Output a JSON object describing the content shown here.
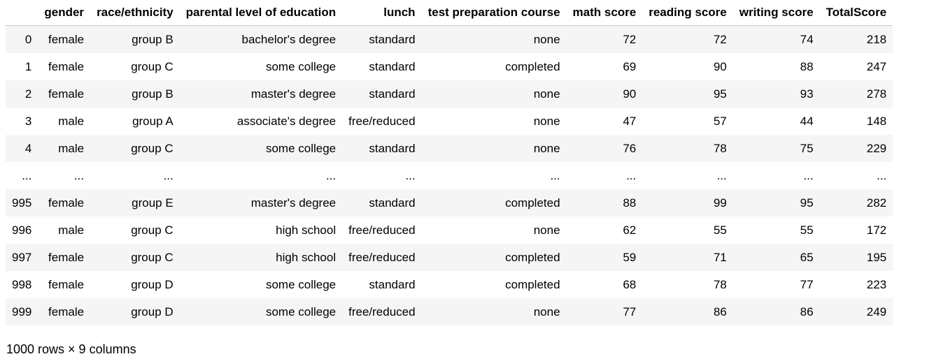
{
  "table": {
    "columns": [
      "",
      "gender",
      "race/ethnicity",
      "parental level of education",
      "lunch",
      "test preparation course",
      "math score",
      "reading score",
      "writing score",
      "TotalScore"
    ],
    "rows": [
      [
        "0",
        "female",
        "group B",
        "bachelor's degree",
        "standard",
        "none",
        "72",
        "72",
        "74",
        "218"
      ],
      [
        "1",
        "female",
        "group C",
        "some college",
        "standard",
        "completed",
        "69",
        "90",
        "88",
        "247"
      ],
      [
        "2",
        "female",
        "group B",
        "master's degree",
        "standard",
        "none",
        "90",
        "95",
        "93",
        "278"
      ],
      [
        "3",
        "male",
        "group A",
        "associate's degree",
        "free/reduced",
        "none",
        "47",
        "57",
        "44",
        "148"
      ],
      [
        "4",
        "male",
        "group C",
        "some college",
        "standard",
        "none",
        "76",
        "78",
        "75",
        "229"
      ],
      [
        "...",
        "...",
        "...",
        "...",
        "...",
        "...",
        "...",
        "...",
        "...",
        "..."
      ],
      [
        "995",
        "female",
        "group E",
        "master's degree",
        "standard",
        "completed",
        "88",
        "99",
        "95",
        "282"
      ],
      [
        "996",
        "male",
        "group C",
        "high school",
        "free/reduced",
        "none",
        "62",
        "55",
        "55",
        "172"
      ],
      [
        "997",
        "female",
        "group C",
        "high school",
        "free/reduced",
        "completed",
        "59",
        "71",
        "65",
        "195"
      ],
      [
        "998",
        "female",
        "group D",
        "some college",
        "standard",
        "completed",
        "68",
        "78",
        "77",
        "223"
      ],
      [
        "999",
        "female",
        "group D",
        "some college",
        "free/reduced",
        "none",
        "77",
        "86",
        "86",
        "249"
      ]
    ]
  },
  "footer": {
    "text": "1000 rows × 9 columns"
  }
}
